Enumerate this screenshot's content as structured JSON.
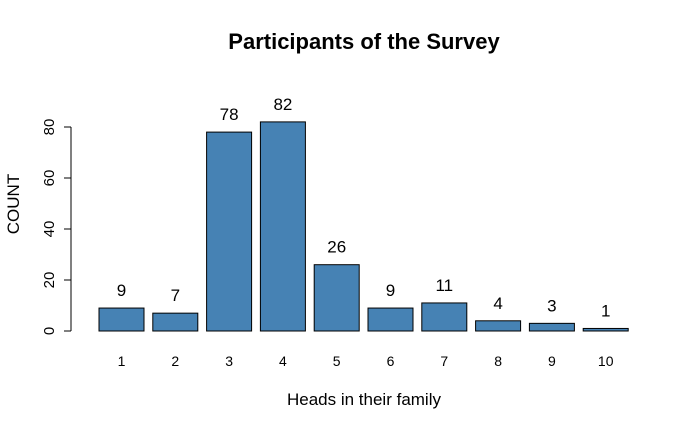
{
  "chart_data": {
    "type": "bar",
    "title": "Participants of the Survey",
    "xlabel": "Heads in their family",
    "ylabel": "COUNT",
    "categories": [
      "1",
      "2",
      "3",
      "4",
      "5",
      "6",
      "7",
      "8",
      "9",
      "10"
    ],
    "values": [
      9,
      7,
      78,
      82,
      26,
      9,
      11,
      4,
      3,
      1
    ],
    "data_labels": [
      "9",
      "7",
      "78",
      "82",
      "26",
      "9",
      "11",
      "4",
      "3",
      "1"
    ],
    "ylim": [
      0,
      82
    ],
    "yticks": [
      0,
      20,
      40,
      60,
      80
    ],
    "ytick_labels": [
      "0",
      "20",
      "40",
      "60",
      "80"
    ],
    "grid": false,
    "legend": "none",
    "bar_color": "#4682b4",
    "bar_edge_color": "#000000"
  }
}
